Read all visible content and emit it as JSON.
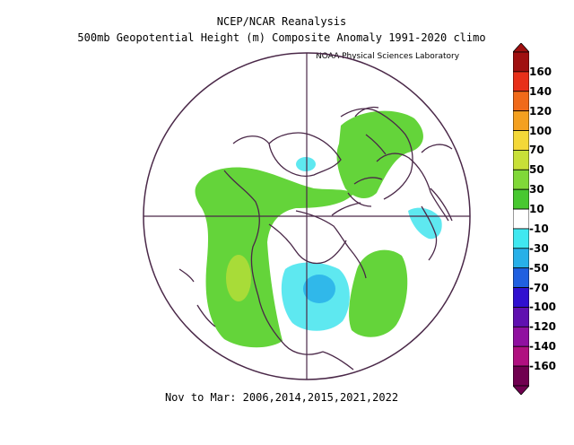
{
  "title_line1": "NCEP/NCAR Reanalysis",
  "title_line2": "500mb Geopotential Height (m) Composite Anomaly 1991-2020 climo",
  "credit": "NOAA Physical Sciences Laboratory",
  "footer": "Nov to Mar: 2006,2014,2015,2021,2022",
  "colorbar": {
    "labels": [
      "160",
      "140",
      "120",
      "100",
      "70",
      "50",
      "30",
      "10",
      "-10",
      "-30",
      "-50",
      "-70",
      "-100",
      "-120",
      "-140",
      "-160"
    ],
    "colors": [
      "#a01010",
      "#e8301a",
      "#f06a1a",
      "#f4a020",
      "#f4d838",
      "#c8e038",
      "#80d838",
      "#48c830",
      "#ffffff",
      "#40e8f0",
      "#28b0e8",
      "#2060e0",
      "#3010d0",
      "#6010b0",
      "#9010a0",
      "#b01080",
      "#700050"
    ]
  }
}
